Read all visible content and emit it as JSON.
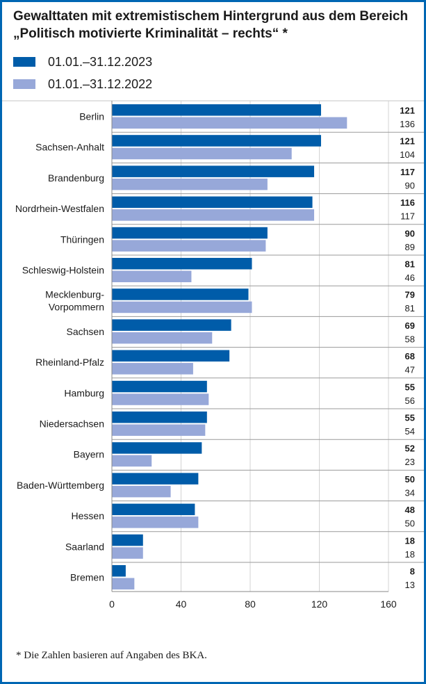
{
  "chart_data": {
    "type": "bar",
    "orientation": "horizontal",
    "title": "Gewalttaten mit extremistischem Hintergrund aus dem Bereich „Politisch motivierte Kriminalität – rechts“ *",
    "categories": [
      "Berlin",
      "Sachsen-Anhalt",
      "Brandenburg",
      "Nordrhein-Westfalen",
      "Thüringen",
      "Schleswig-Holstein",
      "Mecklenburg-Vorpommern",
      "Sachsen",
      "Rheinland-Pfalz",
      "Hamburg",
      "Niedersachsen",
      "Bayern",
      "Baden-Württemberg",
      "Hessen",
      "Saarland",
      "Bremen"
    ],
    "category_display_lines": [
      [
        "Berlin"
      ],
      [
        "Sachsen-Anhalt"
      ],
      [
        "Brandenburg"
      ],
      [
        "Nordrhein-Westfalen"
      ],
      [
        "Thüringen"
      ],
      [
        "Schleswig-Holstein"
      ],
      [
        "Mecklenburg-",
        "Vorpommern"
      ],
      [
        "Sachsen"
      ],
      [
        "Rheinland-Pfalz"
      ],
      [
        "Hamburg"
      ],
      [
        "Niedersachsen"
      ],
      [
        "Bayern"
      ],
      [
        "Baden-Württemberg"
      ],
      [
        "Hessen"
      ],
      [
        "Saarland"
      ],
      [
        "Bremen"
      ]
    ],
    "series": [
      {
        "name": "01.01.–31.12.2023",
        "color": "#005ca9",
        "values": [
          121,
          121,
          117,
          116,
          90,
          81,
          79,
          69,
          68,
          55,
          55,
          52,
          50,
          48,
          18,
          8
        ]
      },
      {
        "name": "01.01.–31.12.2022",
        "color": "#97a8d9",
        "values": [
          136,
          104,
          90,
          117,
          89,
          46,
          81,
          58,
          47,
          56,
          54,
          23,
          34,
          50,
          18,
          13
        ]
      }
    ],
    "xlim": [
      0,
      160
    ],
    "x_ticks": [
      0,
      40,
      80,
      120,
      160
    ],
    "xlabel": "",
    "ylabel": "",
    "grid": true,
    "legend_position": "top-left",
    "footnote": "*  Die Zahlen basieren auf Angaben des BKA."
  }
}
